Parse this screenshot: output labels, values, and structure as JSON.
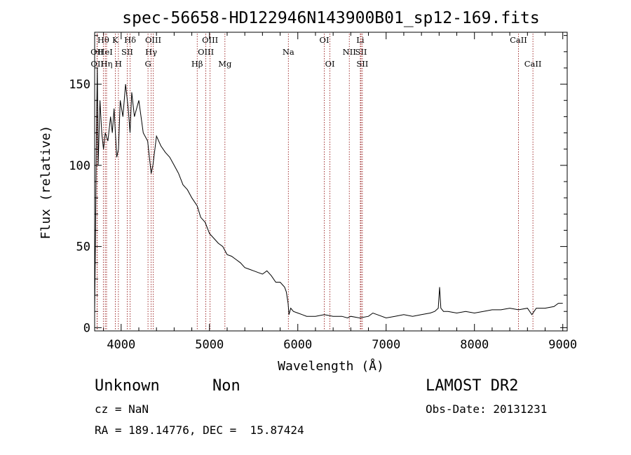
{
  "chart_data": {
    "type": "line",
    "title": "spec-56658-HD122946N143900B01_sp12-169.fits",
    "xlabel": "Wavelength (Å)",
    "ylabel": "Flux (relative)",
    "xlim": [
      3700,
      9050
    ],
    "ylim": [
      -2,
      182
    ],
    "xticks": [
      4000,
      5000,
      6000,
      7000,
      8000,
      9000
    ],
    "yticks": [
      0,
      50,
      100,
      150
    ],
    "grid": false,
    "series": [
      {
        "x": [
          3700,
          3710,
          3720,
          3730,
          3740,
          3760,
          3780,
          3800,
          3820,
          3850,
          3880,
          3900,
          3920,
          3950,
          3970,
          3990,
          4020,
          4050,
          4080,
          4101,
          4120,
          4150,
          4200,
          4250,
          4300,
          4340,
          4360,
          4400,
          4450,
          4500,
          4550,
          4600,
          4650,
          4700,
          4750,
          4800,
          4861,
          4900,
          4950,
          5000,
          5050,
          5100,
          5150,
          5200,
          5250,
          5300,
          5350,
          5400,
          5450,
          5500,
          5550,
          5600,
          5650,
          5700,
          5750,
          5800,
          5850,
          5870,
          5890,
          5900,
          5920,
          5950,
          6000,
          6050,
          6100,
          6200,
          6300,
          6400,
          6500,
          6563,
          6600,
          6700,
          6800,
          6850,
          6900,
          7000,
          7100,
          7200,
          7300,
          7400,
          7500,
          7550,
          7590,
          7605,
          7620,
          7650,
          7700,
          7800,
          7900,
          8000,
          8100,
          8200,
          8300,
          8400,
          8500,
          8600,
          8650,
          8700,
          8800,
          8900,
          8950,
          9000
        ],
        "y": [
          10,
          60,
          120,
          160,
          100,
          140,
          120,
          110,
          120,
          115,
          130,
          120,
          135,
          105,
          110,
          140,
          130,
          150,
          135,
          120,
          145,
          130,
          140,
          120,
          115,
          95,
          100,
          118,
          112,
          108,
          105,
          100,
          95,
          88,
          85,
          80,
          75,
          68,
          65,
          58,
          55,
          52,
          50,
          45,
          44,
          42,
          40,
          37,
          36,
          35,
          34,
          33,
          35,
          32,
          28,
          28,
          25,
          22,
          15,
          8,
          12,
          10,
          9,
          8,
          7,
          7,
          8,
          7,
          7,
          6,
          7,
          6,
          7,
          9,
          8,
          6,
          7,
          8,
          7,
          8,
          9,
          10,
          12,
          25,
          12,
          10,
          10,
          9,
          10,
          9,
          10,
          11,
          11,
          12,
          11,
          12,
          8,
          12,
          12,
          13,
          15,
          15
        ]
      }
    ],
    "line_markers": [
      {
        "label": "OII",
        "x": 3727,
        "row": 1
      },
      {
        "label": "OII",
        "x": 3729,
        "row": 2
      },
      {
        "label": "Hθ",
        "x": 3798,
        "row": 0
      },
      {
        "label": "HeI",
        "x": 3820,
        "row": 1
      },
      {
        "label": "Hη",
        "x": 3835,
        "row": 2
      },
      {
        "label": "K",
        "x": 3934,
        "row": 0
      },
      {
        "label": "SII",
        "x": 4069,
        "row": 1
      },
      {
        "label": "H",
        "x": 3969,
        "row": 2
      },
      {
        "label": "Hδ",
        "x": 4102,
        "row": 0
      },
      {
        "label": "OIII",
        "x": 4363,
        "row": 0
      },
      {
        "label": "Hγ",
        "x": 4340,
        "row": 1
      },
      {
        "label": "G",
        "x": 4304,
        "row": 2
      },
      {
        "label": "Hβ",
        "x": 4861,
        "row": 2
      },
      {
        "label": "OIII",
        "x": 5007,
        "row": 0
      },
      {
        "label": "OIII",
        "x": 4959,
        "row": 1
      },
      {
        "label": "Mg",
        "x": 5175,
        "row": 2
      },
      {
        "label": "Na",
        "x": 5893,
        "row": 1
      },
      {
        "label": "OI",
        "x": 6300,
        "row": 0
      },
      {
        "label": "OI",
        "x": 6364,
        "row": 2
      },
      {
        "label": "NII",
        "x": 6583,
        "row": 1
      },
      {
        "label": "Li",
        "x": 6708,
        "row": 0
      },
      {
        "label": "SII",
        "x": 6716,
        "row": 1
      },
      {
        "label": "SII",
        "x": 6731,
        "row": 2
      },
      {
        "label": "CaII",
        "x": 8498,
        "row": 0
      },
      {
        "label": "CaII",
        "x": 8662,
        "row": 2
      }
    ]
  },
  "info": {
    "class": "Unknown",
    "subclass": "Non",
    "survey": "LAMOST DR2",
    "cz": "cz = NaN",
    "obsdate": "Obs-Date: 20131231",
    "radec": "RA = 189.14776, DEC =  15.87424"
  }
}
